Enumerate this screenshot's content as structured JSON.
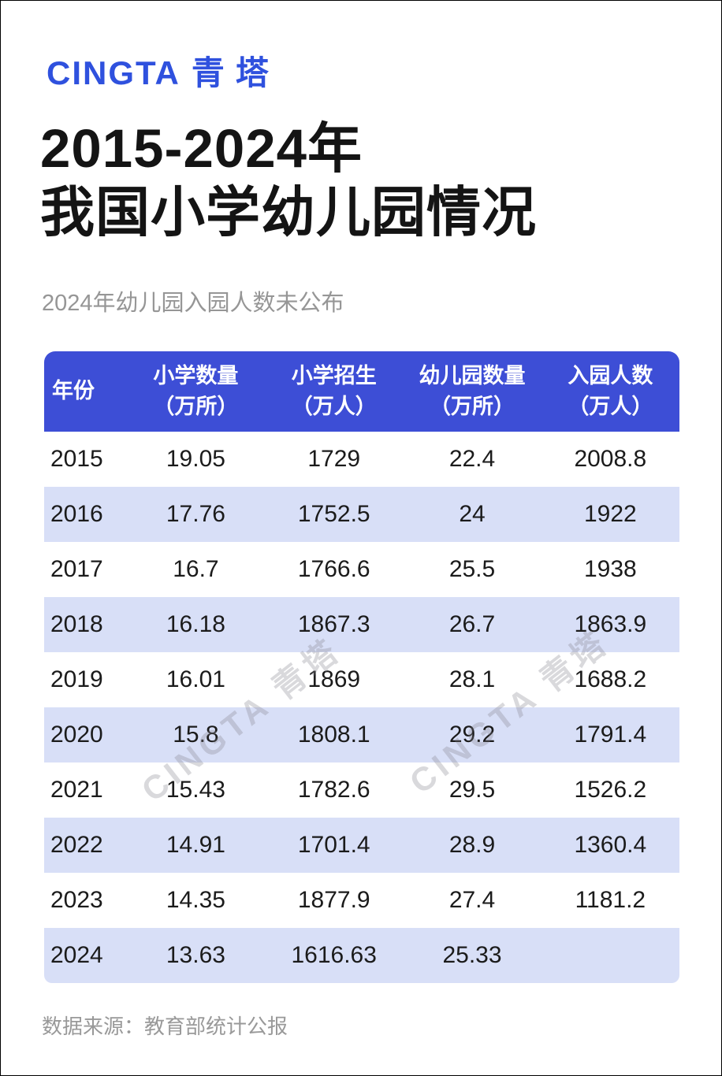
{
  "logo": {
    "latin": "CINGTA",
    "cjk": "青塔"
  },
  "title": {
    "line1": "2015-2024年",
    "line2": "我国小学幼儿园情况"
  },
  "subtitle": "2024年幼儿园入园人数未公布",
  "watermark": "CINGTA 青塔",
  "source": "数据来源：教育部统计公报",
  "colors": {
    "brand_blue": "#2F51DE",
    "header_blue": "#3D4ED6",
    "row_alt_lavender": "#D8DFF7",
    "title_text": "#141414",
    "muted_gray": "#999999"
  },
  "table": {
    "headers": [
      {
        "line1": "年份",
        "line2": ""
      },
      {
        "line1": "小学数量",
        "line2": "（万所）"
      },
      {
        "line1": "小学招生",
        "line2": "（万人）"
      },
      {
        "line1": "幼儿园数量",
        "line2": "（万所）"
      },
      {
        "line1": "入园人数",
        "line2": "（万人）"
      }
    ],
    "rows": [
      [
        "2015",
        "19.05",
        "1729",
        "22.4",
        "2008.8"
      ],
      [
        "2016",
        "17.76",
        "1752.5",
        "24",
        "1922"
      ],
      [
        "2017",
        "16.7",
        "1766.6",
        "25.5",
        "1938"
      ],
      [
        "2018",
        "16.18",
        "1867.3",
        "26.7",
        "1863.9"
      ],
      [
        "2019",
        "16.01",
        "1869",
        "28.1",
        "1688.2"
      ],
      [
        "2020",
        "15.8",
        "1808.1",
        "29.2",
        "1791.4"
      ],
      [
        "2021",
        "15.43",
        "1782.6",
        "29.5",
        "1526.2"
      ],
      [
        "2022",
        "14.91",
        "1701.4",
        "28.9",
        "1360.4"
      ],
      [
        "2023",
        "14.35",
        "1877.9",
        "27.4",
        "1181.2"
      ],
      [
        "2024",
        "13.63",
        "1616.63",
        "25.33",
        ""
      ]
    ]
  },
  "chart_data": {
    "type": "table",
    "title": "2015-2024年我国小学幼儿园情况",
    "note": "2024年幼儿园入园人数未公布",
    "source": "教育部统计公报",
    "categories": [
      "2015",
      "2016",
      "2017",
      "2018",
      "2019",
      "2020",
      "2021",
      "2022",
      "2023",
      "2024"
    ],
    "series": [
      {
        "name": "小学数量（万所）",
        "values": [
          19.05,
          17.76,
          16.7,
          16.18,
          16.01,
          15.8,
          15.43,
          14.91,
          14.35,
          13.63
        ]
      },
      {
        "name": "小学招生（万人）",
        "values": [
          1729,
          1752.5,
          1766.6,
          1867.3,
          1869,
          1808.1,
          1782.6,
          1701.4,
          1877.9,
          1616.63
        ]
      },
      {
        "name": "幼儿园数量（万所）",
        "values": [
          22.4,
          24,
          25.5,
          26.7,
          28.1,
          29.2,
          29.5,
          28.9,
          27.4,
          25.33
        ]
      },
      {
        "name": "入园人数（万人）",
        "values": [
          2008.8,
          1922,
          1938,
          1863.9,
          1688.2,
          1791.4,
          1526.2,
          1360.4,
          1181.2,
          null
        ]
      }
    ]
  }
}
